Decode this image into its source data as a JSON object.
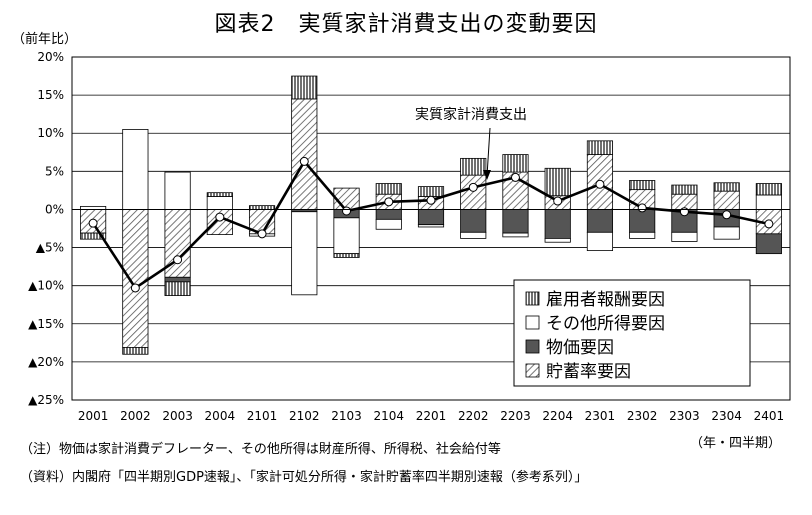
{
  "chart_data": {
    "type": "bar",
    "title": "図表2　実質家計消費支出の変動要因",
    "ylabel": "（前年比）",
    "xunit": "（年・四半期）",
    "ylim": [
      -25,
      20
    ],
    "yticks": [
      {
        "value": 20,
        "label": "20%"
      },
      {
        "value": 15,
        "label": "15%"
      },
      {
        "value": 10,
        "label": "10%"
      },
      {
        "value": 5,
        "label": "5%"
      },
      {
        "value": 0,
        "label": "0%"
      },
      {
        "value": -5,
        "label": "▲5%"
      },
      {
        "value": -10,
        "label": "▲10%"
      },
      {
        "value": -15,
        "label": "▲15%"
      },
      {
        "value": -20,
        "label": "▲20%"
      },
      {
        "value": -25,
        "label": "▲25%"
      }
    ],
    "categories": [
      "2001",
      "2002",
      "2003",
      "2004",
      "2101",
      "2102",
      "2103",
      "2104",
      "2201",
      "2202",
      "2203",
      "2204",
      "2301",
      "2302",
      "2303",
      "2304",
      "2401"
    ],
    "series": [
      {
        "name": "雇用者報酬要因",
        "values": [
          -0.8,
          -0.9,
          -1.8,
          0.5,
          0.5,
          3.0,
          -0.5,
          1.4,
          1.3,
          2.2,
          2.3,
          3.6,
          1.8,
          1.2,
          1.2,
          1.1,
          1.5
        ]
      },
      {
        "name": "その他所得要因",
        "values": [
          0.4,
          10.5,
          4.9,
          1.7,
          -0.3,
          -10.9,
          -4.7,
          -1.3,
          -0.3,
          -0.8,
          -0.5,
          -0.5,
          -2.4,
          -0.8,
          -1.2,
          -1.6,
          1.9
        ]
      },
      {
        "name": "物価要因",
        "values": [
          0.0,
          0.0,
          -0.6,
          0.0,
          0.0,
          -0.3,
          -1.1,
          -1.3,
          -2.0,
          -3.0,
          -3.1,
          -3.8,
          -3.0,
          -3.0,
          -3.0,
          -2.3,
          -2.6
        ]
      },
      {
        "name": "貯蓄率要因",
        "values": [
          -3.1,
          -18.1,
          -8.9,
          -3.3,
          -3.2,
          14.5,
          2.8,
          2.0,
          1.7,
          4.5,
          4.9,
          1.8,
          7.2,
          2.6,
          2.0,
          2.4,
          -3.2
        ]
      }
    ],
    "line": {
      "name": "実質家計消費支出",
      "values": [
        -1.8,
        -10.3,
        -6.6,
        -1.0,
        -3.2,
        6.3,
        -0.2,
        1.0,
        1.2,
        2.9,
        4.2,
        1.1,
        3.3,
        0.2,
        -0.3,
        -0.7,
        -1.9
      ]
    },
    "colors": {
      "雇用者報酬要因": "#777777",
      "その他所得要因": "#ffffff",
      "物価要因": "#555555",
      "貯蓄率要因": "hatch"
    },
    "legend_position": "bottom-right",
    "grid": true
  },
  "title": "図表2　実質家計消費支出の変動要因",
  "unit_label": "（前年比）",
  "quarter_unit": "（年・四半期）",
  "annotation": "実質家計消費支出",
  "note": "（注）物価は家計消費デフレーター、その他所得は財産所得、所得税、社会給付等",
  "source": "（資料）内閣府「四半期別GDP速報」、「家計可処分所得・家計貯蓄率四半期別速報（参考系列）」"
}
